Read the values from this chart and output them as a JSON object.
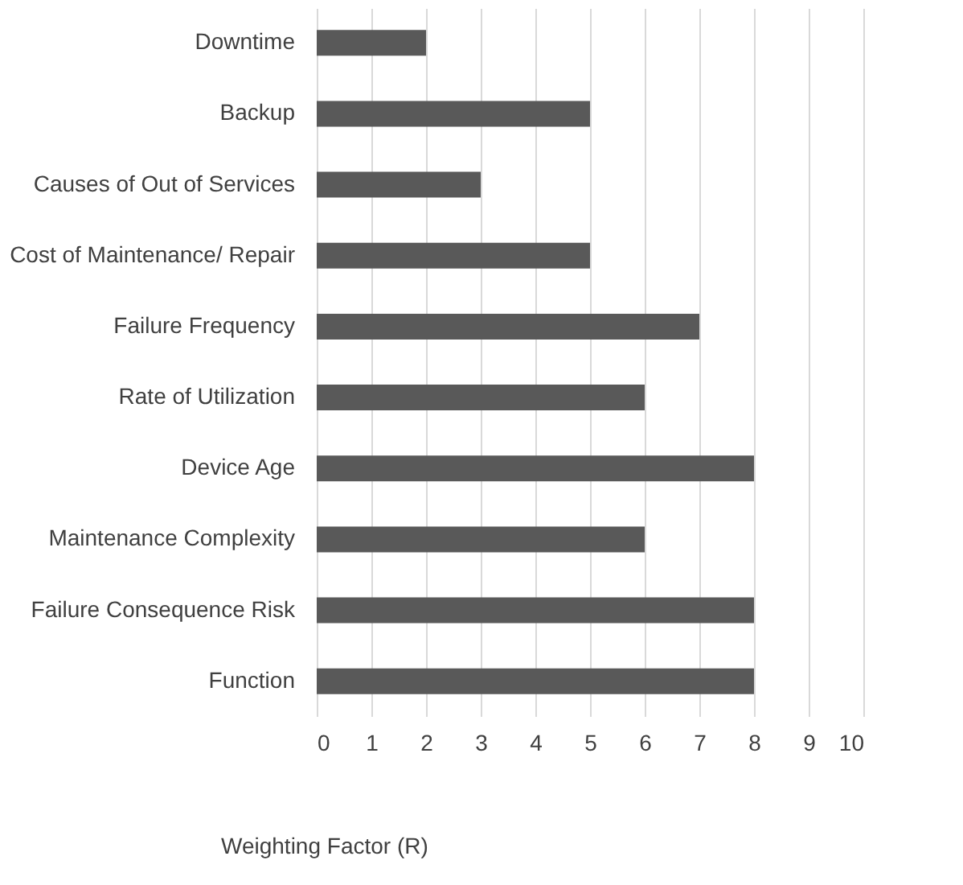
{
  "chart_data": {
    "type": "bar",
    "orientation": "horizontal",
    "xlabel": "Weighting Factor (R)",
    "categories": [
      "Downtime",
      "Backup",
      "Causes of Out of Services",
      "Cost of Maintenance/ Repair",
      "Failure Frequency",
      "Rate of Utilization",
      "Device Age",
      "Maintenance Complexity",
      "Failure Consequence Risk",
      "Function"
    ],
    "values": [
      2,
      5,
      3,
      5,
      7,
      6,
      8,
      6,
      8,
      8
    ],
    "color": "#595959",
    "xlim": [
      0,
      10
    ],
    "xticks": [
      0,
      1,
      2,
      3,
      4,
      5,
      6,
      7,
      8,
      9,
      10
    ],
    "grid": "x"
  }
}
